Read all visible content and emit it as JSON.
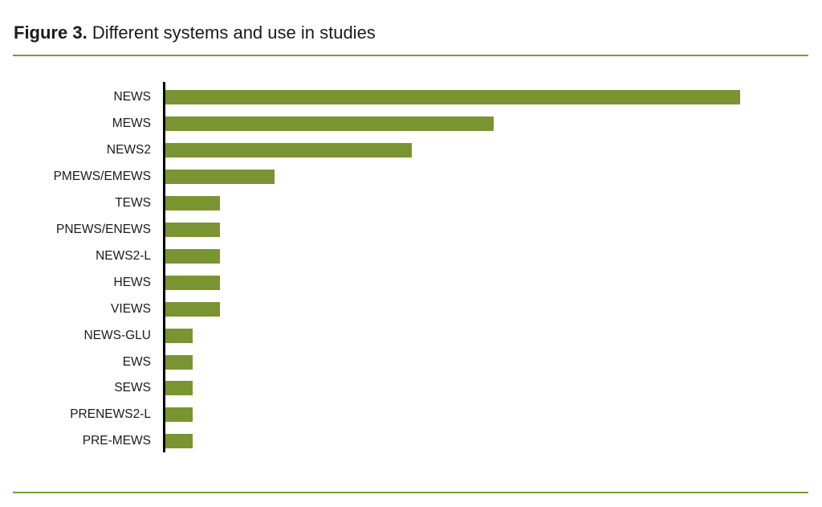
{
  "figure": {
    "label": "Figure 3.",
    "caption": "Different systems and use in studies"
  },
  "colors": {
    "bar": "#799431",
    "rule": "#7a9a3c",
    "axis": "#000000"
  },
  "chart_data": {
    "type": "bar",
    "orientation": "horizontal",
    "title": "Figure 3. Different systems and use in studies",
    "xlabel": "",
    "ylabel": "",
    "grid": false,
    "legend": null,
    "x_axis_visible": false,
    "categories": [
      "NEWS",
      "MEWS",
      "NEWS2",
      "PMEWS/EMEWS",
      "TEWS",
      "PNEWS/ENEWS",
      "NEWS2-L",
      "HEWS",
      "VIEWS",
      "NEWS-GLU",
      "EWS",
      "SEWS",
      "PRENEWS2-L",
      "PRE-MEWS"
    ],
    "values": [
      21,
      12,
      9,
      4,
      2,
      2,
      2,
      2,
      2,
      1,
      1,
      1,
      1,
      1
    ],
    "xlim": [
      0,
      22
    ]
  }
}
